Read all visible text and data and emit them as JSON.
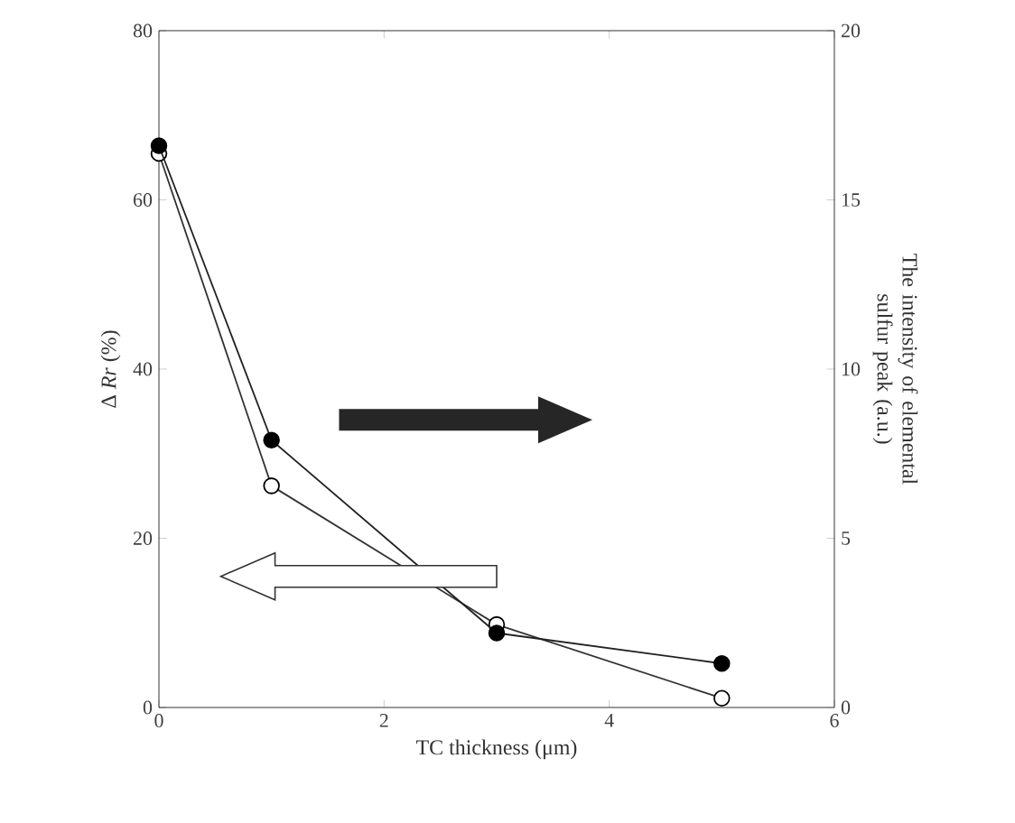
{
  "chart_data": {
    "type": "line",
    "xlabel": "TC thickness (μm)",
    "ylabel": "Δ *Rr* (%)",
    "y2label": "The intensity of elemental sulfur peak (a.u.)",
    "x": [
      0,
      1,
      3,
      5
    ],
    "series": [
      {
        "color": "#333333",
        "values": [
          65.5,
          26.2,
          9.8,
          1.1
        ]
      },
      {
        "color": "#222222",
        "values": [
          16.6,
          7.9,
          2.2,
          1.3
        ],
        "axis": "y2"
      }
    ],
    "xlim": [
      0,
      6
    ],
    "xticks": [
      0,
      2,
      4,
      6
    ],
    "ylim": [
      0,
      80
    ],
    "yticks": [
      0,
      20,
      40,
      60,
      80
    ],
    "y2lim": [
      0,
      20
    ],
    "y2ticks": [
      0,
      5,
      10,
      15,
      20
    ],
    "marker": "circle",
    "line_style": "solid",
    "grid": false
  }
}
